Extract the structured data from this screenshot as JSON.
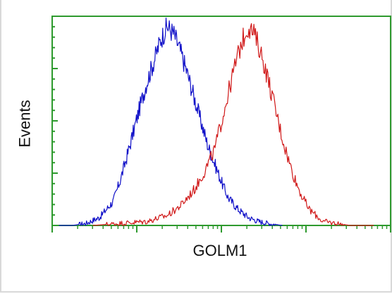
{
  "chart_data": {
    "type": "line",
    "title": "",
    "xlabel": "GOLM1",
    "ylabel": "Events",
    "x_tick_labels": "none",
    "y_tick_labels": "none",
    "grid": false,
    "legend": "none",
    "frame_color": "#2e9a2e",
    "x_scale": "log",
    "series": [
      {
        "color": "#1010c8",
        "x": [
          0.02,
          0.06,
          0.1,
          0.14,
          0.18,
          0.2,
          0.22,
          0.24,
          0.26,
          0.28,
          0.3,
          0.32,
          0.34,
          0.36,
          0.38,
          0.4,
          0.42,
          0.44,
          0.46,
          0.48,
          0.5,
          0.52,
          0.55,
          0.58,
          0.61,
          0.64,
          0.68
        ],
        "y": [
          0.0,
          0.0,
          0.01,
          0.04,
          0.12,
          0.22,
          0.34,
          0.47,
          0.6,
          0.72,
          0.82,
          0.93,
          1.0,
          0.96,
          0.87,
          0.76,
          0.64,
          0.52,
          0.4,
          0.31,
          0.22,
          0.14,
          0.08,
          0.04,
          0.02,
          0.01,
          0.0
        ]
      },
      {
        "color": "#d01818",
        "x": [
          0.12,
          0.2,
          0.28,
          0.34,
          0.38,
          0.42,
          0.45,
          0.48,
          0.5,
          0.52,
          0.54,
          0.56,
          0.58,
          0.6,
          0.62,
          0.64,
          0.66,
          0.68,
          0.7,
          0.72,
          0.74,
          0.76,
          0.78,
          0.8,
          0.84,
          0.88,
          0.95
        ],
        "y": [
          0.0,
          0.01,
          0.02,
          0.05,
          0.1,
          0.18,
          0.27,
          0.38,
          0.52,
          0.66,
          0.8,
          0.92,
          1.0,
          0.95,
          0.85,
          0.72,
          0.58,
          0.44,
          0.32,
          0.22,
          0.14,
          0.08,
          0.05,
          0.02,
          0.01,
          0.0,
          0.0
        ]
      }
    ],
    "xlim": [
      0,
      1
    ],
    "ylim": [
      0,
      1.05
    ]
  }
}
